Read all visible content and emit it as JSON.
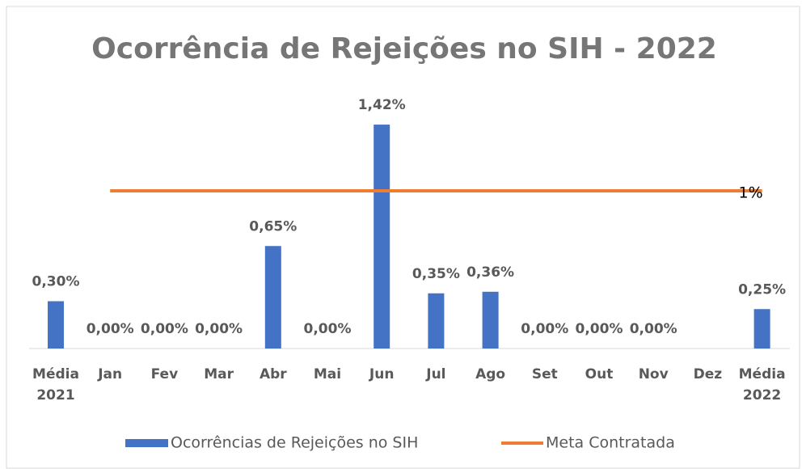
{
  "chart_data": {
    "type": "bar",
    "title": "Ocorrência de Rejeições no SIH - 2022",
    "categories": [
      "Média 2021",
      "Jan",
      "Fev",
      "Mar",
      "Abr",
      "Mai",
      "Jun",
      "Jul",
      "Ago",
      "Set",
      "Out",
      "Nov",
      "Dez",
      "Média 2022"
    ],
    "series": [
      {
        "name": "Ocorrências de Rejeições no SIH",
        "type": "bar",
        "color": "#4472c4",
        "values": [
          0.3,
          0,
          0,
          0,
          0.65,
          0,
          1.42,
          0.35,
          0.36,
          0,
          0,
          0,
          null,
          0.25
        ],
        "value_labels": [
          "0,30%",
          "0,00%",
          "0,00%",
          "0,00%",
          "0,65%",
          "0,00%",
          "1,42%",
          "0,35%",
          "0,36%",
          "0,00%",
          "0,00%",
          "0,00%",
          null,
          "0,25%"
        ]
      },
      {
        "name": "Meta Contratada",
        "type": "line",
        "color": "#ed7d31",
        "values": [
          null,
          1,
          1,
          1,
          1,
          1,
          1,
          1,
          1,
          1,
          1,
          1,
          1,
          1
        ],
        "value_labels": [
          null,
          null,
          null,
          null,
          null,
          null,
          null,
          null,
          null,
          null,
          null,
          null,
          null,
          "1%"
        ]
      }
    ],
    "ylim": [
      0,
      1.6
    ],
    "grid": false,
    "legend": "bottom"
  }
}
